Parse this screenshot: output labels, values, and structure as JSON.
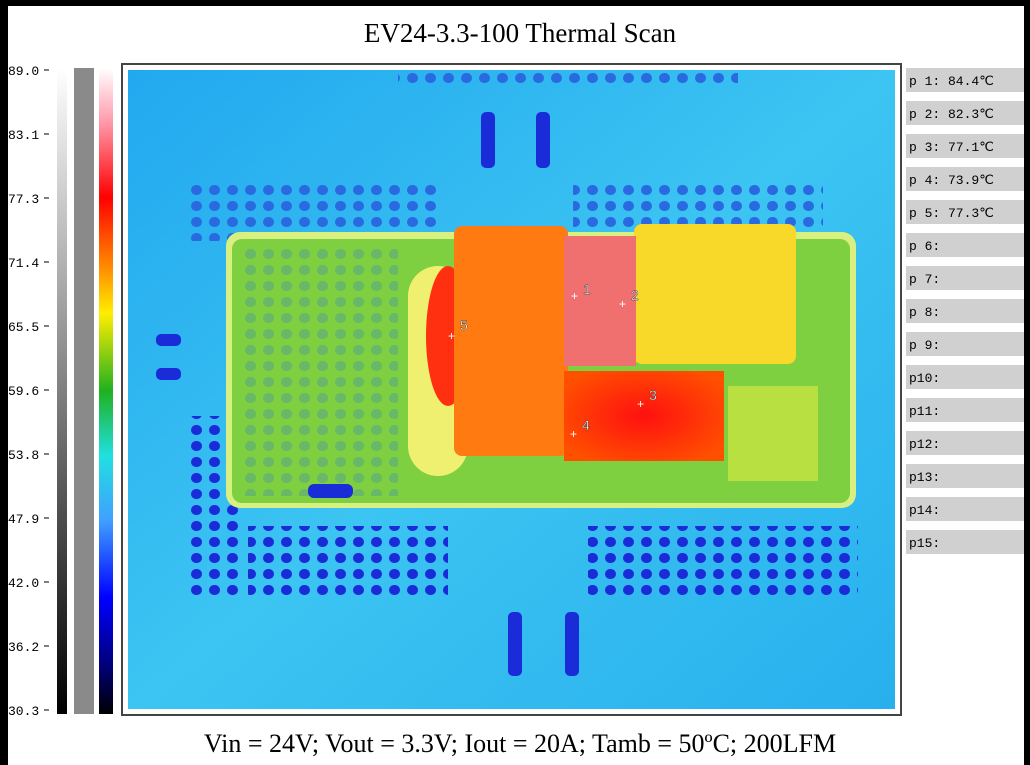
{
  "title": "EV24-3.3-100 Thermal Scan",
  "scale_ticks": [
    "89.0",
    "83.1",
    "77.3",
    "71.4",
    "65.5",
    "59.6",
    "53.8",
    "47.9",
    "42.0",
    "36.2",
    "30.3"
  ],
  "points": [
    {
      "label": "p 1:",
      "reading": "84.4℃"
    },
    {
      "label": "p 2:",
      "reading": "82.3℃"
    },
    {
      "label": "p 3:",
      "reading": "77.1℃"
    },
    {
      "label": "p 4:",
      "reading": "73.9℃"
    },
    {
      "label": "p 5:",
      "reading": "77.3℃"
    },
    {
      "label": "p 6:"
    },
    {
      "label": "p 7:"
    },
    {
      "label": "p 8:"
    },
    {
      "label": "p 9:"
    },
    {
      "label": "p10:"
    },
    {
      "label": "p11:"
    },
    {
      "label": "p12:"
    },
    {
      "label": "p13:"
    },
    {
      "label": "p14:"
    },
    {
      "label": "p15:"
    }
  ],
  "markers": [
    "1",
    "2",
    "3",
    "4",
    "5"
  ],
  "caption": "Vin = 24V; Vout = 3.3V; Iout = 20A; Tamb = 50ºC; 200LFM"
}
